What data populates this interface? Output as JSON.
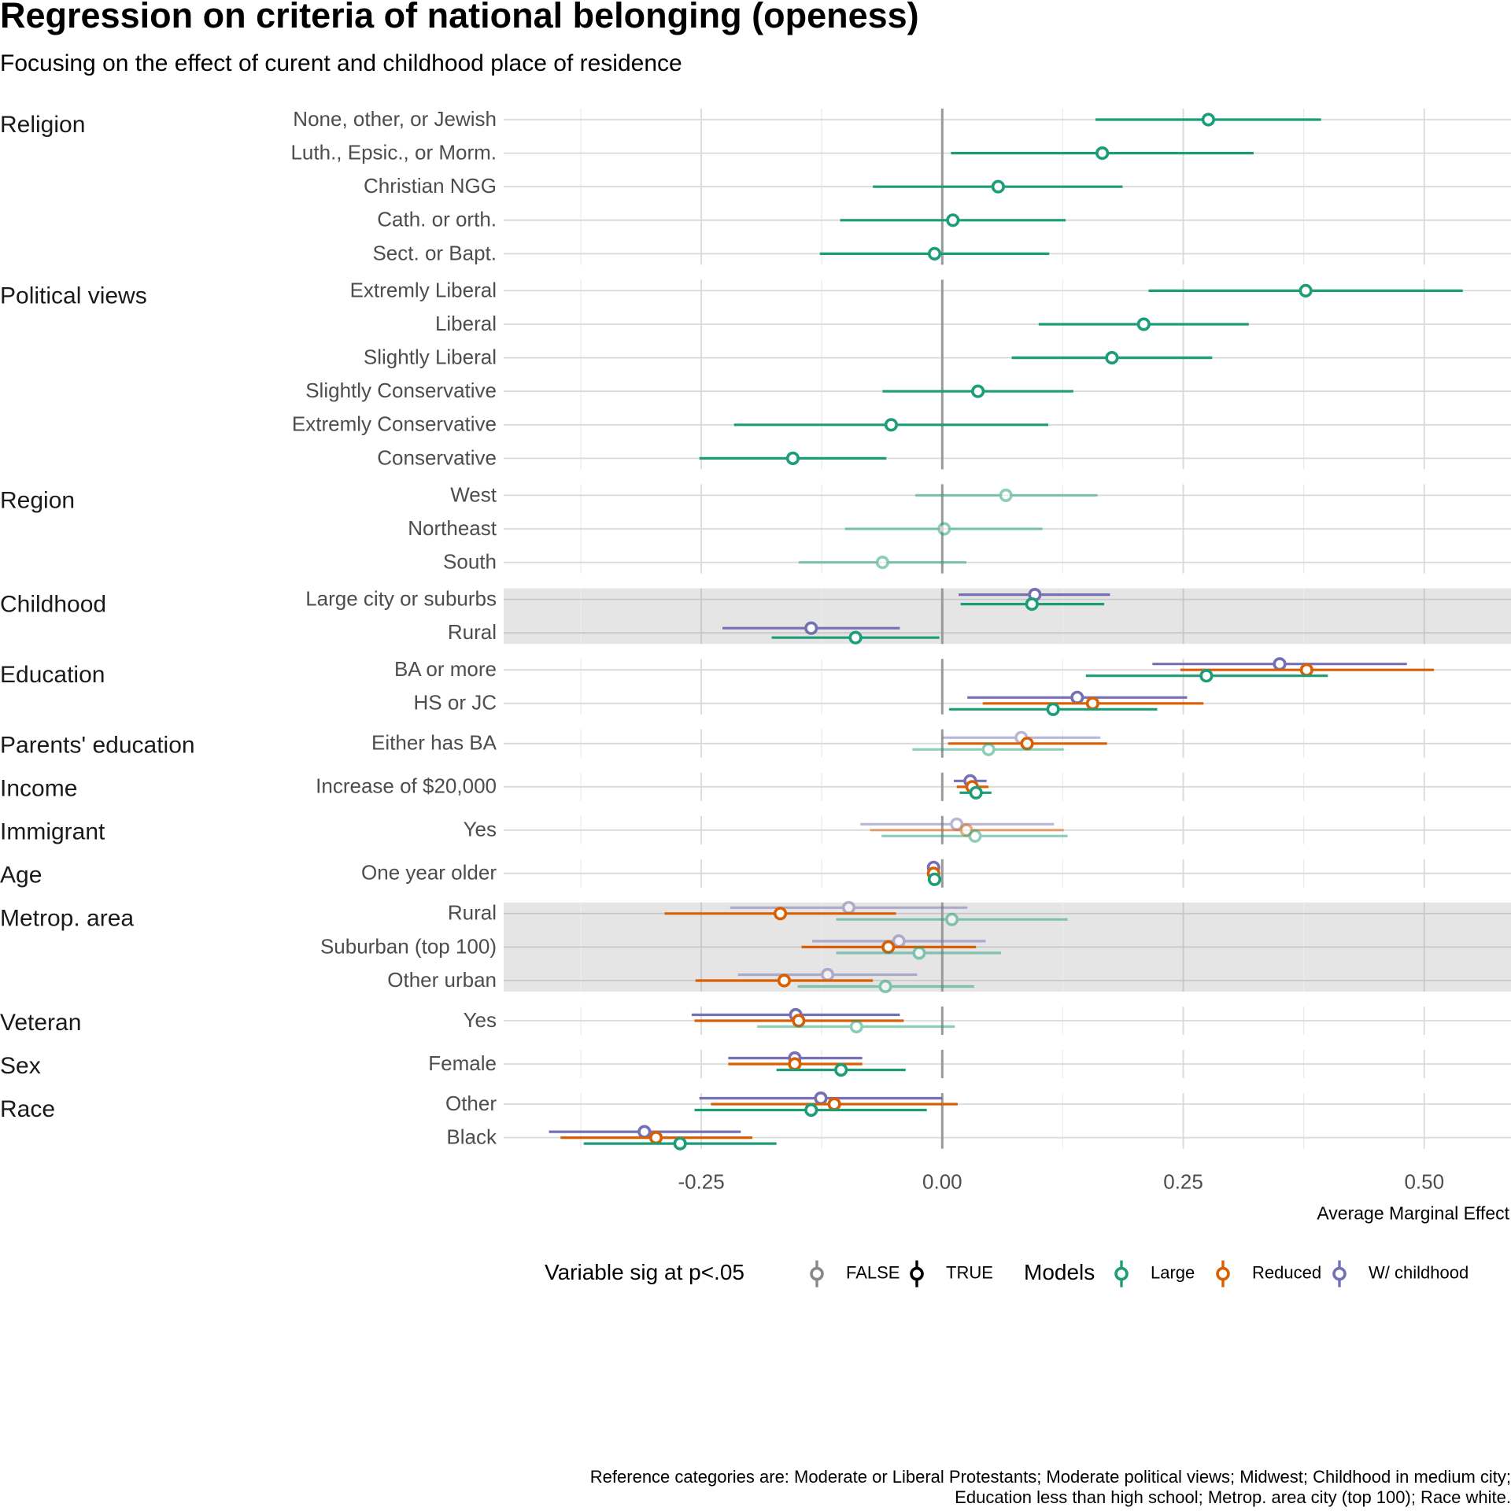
{
  "chart_data": {
    "type": "scatter",
    "title": "Regression on criteria of national belonging (openess)",
    "subtitle": "Focusing on the effect of curent and childhood place of residence",
    "xlabel": "Average Marginal Effect",
    "ylabel": "",
    "xlim": [
      -0.455,
      0.59
    ],
    "x_ticks": [
      -0.25,
      0.0,
      0.25,
      0.5
    ],
    "x_tick_labels": [
      "-0.25",
      "0.00",
      "0.25",
      "0.50"
    ],
    "grid": true,
    "legend_placement": "bottom",
    "legend": {
      "sig_title": "Variable sig at p<.05",
      "sig_entries": [
        {
          "label": "FALSE",
          "color": "#888888"
        },
        {
          "label": "TRUE",
          "color": "#000000"
        }
      ],
      "models_title": "Models",
      "model_entries": [
        {
          "label": "Large",
          "color": "#1b9e77"
        },
        {
          "label": "Reduced",
          "color": "#d95f02"
        },
        {
          "label": "W/ childhood",
          "color": "#7570b3"
        }
      ]
    },
    "caption": [
      "Reference categories are: Moderate or Liberal Protestants; Moderate political views; Midwest; Childhood in medium city;",
      "Education less than high school; Metrop. area city (top 100); Race white."
    ],
    "groups": [
      {
        "name": "Religion",
        "highlight": false,
        "items": [
          {
            "label": "None, other, or Jewish",
            "estimates": [
              {
                "model": "Large",
                "est": 0.276,
                "lo": 0.159,
                "hi": 0.393,
                "sig": true
              }
            ]
          },
          {
            "label": "Luth., Epsic., or Morm.",
            "estimates": [
              {
                "model": "Large",
                "est": 0.166,
                "lo": 0.009,
                "hi": 0.323,
                "sig": true
              }
            ]
          },
          {
            "label": "Christian NGG",
            "estimates": [
              {
                "model": "Large",
                "est": 0.058,
                "lo": -0.072,
                "hi": 0.187,
                "sig": true
              }
            ]
          },
          {
            "label": "Cath. or orth.",
            "estimates": [
              {
                "model": "Large",
                "est": 0.011,
                "lo": -0.106,
                "hi": 0.128,
                "sig": true
              }
            ]
          },
          {
            "label": "Sect. or Bapt.",
            "estimates": [
              {
                "model": "Large",
                "est": -0.008,
                "lo": -0.127,
                "hi": 0.111,
                "sig": true
              }
            ]
          }
        ]
      },
      {
        "name": "Political views",
        "highlight": false,
        "items": [
          {
            "label": "Extremly Liberal",
            "estimates": [
              {
                "model": "Large",
                "est": 0.377,
                "lo": 0.214,
                "hi": 0.54,
                "sig": true
              }
            ]
          },
          {
            "label": "Liberal",
            "estimates": [
              {
                "model": "Large",
                "est": 0.209,
                "lo": 0.1,
                "hi": 0.318,
                "sig": true
              }
            ]
          },
          {
            "label": "Slightly Liberal",
            "estimates": [
              {
                "model": "Large",
                "est": 0.176,
                "lo": 0.072,
                "hi": 0.28,
                "sig": true
              }
            ]
          },
          {
            "label": "Slightly Conservative",
            "estimates": [
              {
                "model": "Large",
                "est": 0.037,
                "lo": -0.062,
                "hi": 0.136,
                "sig": true
              }
            ]
          },
          {
            "label": "Extremly Conservative",
            "estimates": [
              {
                "model": "Large",
                "est": -0.053,
                "lo": -0.216,
                "hi": 0.11,
                "sig": true
              }
            ]
          },
          {
            "label": "Conservative",
            "estimates": [
              {
                "model": "Large",
                "est": -0.155,
                "lo": -0.252,
                "hi": -0.058,
                "sig": true
              }
            ]
          }
        ]
      },
      {
        "name": "Region",
        "highlight": false,
        "items": [
          {
            "label": "West",
            "estimates": [
              {
                "model": "Large",
                "est": 0.066,
                "lo": -0.028,
                "hi": 0.161,
                "sig": false
              }
            ]
          },
          {
            "label": "Northeast",
            "estimates": [
              {
                "model": "Large",
                "est": 0.002,
                "lo": -0.101,
                "hi": 0.104,
                "sig": false
              }
            ]
          },
          {
            "label": "South",
            "estimates": [
              {
                "model": "Large",
                "est": -0.062,
                "lo": -0.149,
                "hi": 0.025,
                "sig": false
              }
            ]
          }
        ]
      },
      {
        "name": "Childhood",
        "highlight": true,
        "items": [
          {
            "label": "Large city or suburbs",
            "estimates": [
              {
                "model": "W/ childhood",
                "est": 0.096,
                "lo": 0.017,
                "hi": 0.174,
                "sig": true
              },
              {
                "model": "Large",
                "est": 0.093,
                "lo": 0.019,
                "hi": 0.168,
                "sig": true
              }
            ]
          },
          {
            "label": "Rural",
            "estimates": [
              {
                "model": "W/ childhood",
                "est": -0.136,
                "lo": -0.228,
                "hi": -0.044,
                "sig": true
              },
              {
                "model": "Large",
                "est": -0.09,
                "lo": -0.177,
                "hi": -0.003,
                "sig": true
              }
            ]
          }
        ]
      },
      {
        "name": "Education",
        "highlight": false,
        "items": [
          {
            "label": "BA or more",
            "estimates": [
              {
                "model": "W/ childhood",
                "est": 0.35,
                "lo": 0.218,
                "hi": 0.482,
                "sig": true
              },
              {
                "model": "Reduced",
                "est": 0.378,
                "lo": 0.247,
                "hi": 0.51,
                "sig": true
              },
              {
                "model": "Large",
                "est": 0.274,
                "lo": 0.149,
                "hi": 0.4,
                "sig": true
              }
            ]
          },
          {
            "label": "HS or JC",
            "estimates": [
              {
                "model": "W/ childhood",
                "est": 0.14,
                "lo": 0.026,
                "hi": 0.254,
                "sig": true
              },
              {
                "model": "Reduced",
                "est": 0.156,
                "lo": 0.042,
                "hi": 0.271,
                "sig": true
              },
              {
                "model": "Large",
                "est": 0.115,
                "lo": 0.007,
                "hi": 0.223,
                "sig": true
              }
            ]
          }
        ]
      },
      {
        "name": "Parents' education",
        "highlight": false,
        "items": [
          {
            "label": "Either has BA",
            "estimates": [
              {
                "model": "W/ childhood",
                "est": 0.082,
                "lo": 0.0,
                "hi": 0.164,
                "sig": false
              },
              {
                "model": "Reduced",
                "est": 0.088,
                "lo": 0.006,
                "hi": 0.171,
                "sig": true
              },
              {
                "model": "Large",
                "est": 0.048,
                "lo": -0.031,
                "hi": 0.126,
                "sig": false
              }
            ]
          }
        ]
      },
      {
        "name": "Income",
        "highlight": false,
        "items": [
          {
            "label": "Increase of $20,000",
            "estimates": [
              {
                "model": "W/ childhood",
                "est": 0.029,
                "lo": 0.012,
                "hi": 0.046,
                "sig": true
              },
              {
                "model": "Reduced",
                "est": 0.031,
                "lo": 0.015,
                "hi": 0.048,
                "sig": true
              },
              {
                "model": "Large",
                "est": 0.035,
                "lo": 0.018,
                "hi": 0.051,
                "sig": true
              }
            ]
          }
        ]
      },
      {
        "name": "Immigrant",
        "highlight": false,
        "items": [
          {
            "label": "Yes",
            "estimates": [
              {
                "model": "W/ childhood",
                "est": 0.015,
                "lo": -0.085,
                "hi": 0.116,
                "sig": false
              },
              {
                "model": "Reduced",
                "est": 0.025,
                "lo": -0.075,
                "hi": 0.126,
                "sig": false
              },
              {
                "model": "Large",
                "est": 0.034,
                "lo": -0.063,
                "hi": 0.13,
                "sig": false
              }
            ]
          }
        ]
      },
      {
        "name": "Age",
        "highlight": false,
        "items": [
          {
            "label": "One year older",
            "estimates": [
              {
                "model": "W/ childhood",
                "est": -0.009,
                "lo": -0.012,
                "hi": -0.006,
                "sig": true
              },
              {
                "model": "Reduced",
                "est": -0.009,
                "lo": -0.012,
                "hi": -0.006,
                "sig": true
              },
              {
                "model": "Large",
                "est": -0.008,
                "lo": -0.011,
                "hi": -0.005,
                "sig": true
              }
            ]
          }
        ]
      },
      {
        "name": "Metrop. area",
        "highlight": true,
        "items": [
          {
            "label": "Rural",
            "estimates": [
              {
                "model": "W/ childhood",
                "est": -0.097,
                "lo": -0.22,
                "hi": 0.026,
                "sig": false
              },
              {
                "model": "Reduced",
                "est": -0.168,
                "lo": -0.288,
                "hi": -0.048,
                "sig": true
              },
              {
                "model": "Large",
                "est": 0.01,
                "lo": -0.11,
                "hi": 0.13,
                "sig": false
              }
            ]
          },
          {
            "label": "Suburban (top 100)",
            "estimates": [
              {
                "model": "W/ childhood",
                "est": -0.045,
                "lo": -0.135,
                "hi": 0.045,
                "sig": false
              },
              {
                "model": "Reduced",
                "est": -0.056,
                "lo": -0.146,
                "hi": 0.035,
                "sig": true
              },
              {
                "model": "Large",
                "est": -0.024,
                "lo": -0.11,
                "hi": 0.061,
                "sig": false
              }
            ]
          },
          {
            "label": "Other urban",
            "estimates": [
              {
                "model": "W/ childhood",
                "est": -0.119,
                "lo": -0.212,
                "hi": -0.026,
                "sig": false
              },
              {
                "model": "Reduced",
                "est": -0.164,
                "lo": -0.256,
                "hi": -0.072,
                "sig": true
              },
              {
                "model": "Large",
                "est": -0.059,
                "lo": -0.15,
                "hi": 0.033,
                "sig": false
              }
            ]
          }
        ]
      },
      {
        "name": "Veteran",
        "highlight": false,
        "items": [
          {
            "label": "Yes",
            "estimates": [
              {
                "model": "W/ childhood",
                "est": -0.152,
                "lo": -0.26,
                "hi": -0.044,
                "sig": true
              },
              {
                "model": "Reduced",
                "est": -0.149,
                "lo": -0.257,
                "hi": -0.04,
                "sig": true
              },
              {
                "model": "Large",
                "est": -0.089,
                "lo": -0.192,
                "hi": 0.013,
                "sig": false
              }
            ]
          }
        ]
      },
      {
        "name": "Sex",
        "highlight": false,
        "items": [
          {
            "label": "Female",
            "estimates": [
              {
                "model": "W/ childhood",
                "est": -0.153,
                "lo": -0.222,
                "hi": -0.083,
                "sig": true
              },
              {
                "model": "Reduced",
                "est": -0.153,
                "lo": -0.222,
                "hi": -0.083,
                "sig": true
              },
              {
                "model": "Large",
                "est": -0.105,
                "lo": -0.172,
                "hi": -0.038,
                "sig": true
              }
            ]
          }
        ]
      },
      {
        "name": "Race",
        "highlight": false,
        "items": [
          {
            "label": "Other",
            "estimates": [
              {
                "model": "W/ childhood",
                "est": -0.126,
                "lo": -0.252,
                "hi": 0.0,
                "sig": true
              },
              {
                "model": "Reduced",
                "est": -0.112,
                "lo": -0.24,
                "hi": 0.016,
                "sig": true
              },
              {
                "model": "Large",
                "est": -0.136,
                "lo": -0.257,
                "hi": -0.016,
                "sig": true
              }
            ]
          },
          {
            "label": "Black",
            "estimates": [
              {
                "model": "W/ childhood",
                "est": -0.309,
                "lo": -0.408,
                "hi": -0.209,
                "sig": true
              },
              {
                "model": "Reduced",
                "est": -0.297,
                "lo": -0.396,
                "hi": -0.197,
                "sig": true
              },
              {
                "model": "Large",
                "est": -0.272,
                "lo": -0.372,
                "hi": -0.172,
                "sig": true
              }
            ]
          }
        ]
      }
    ]
  }
}
